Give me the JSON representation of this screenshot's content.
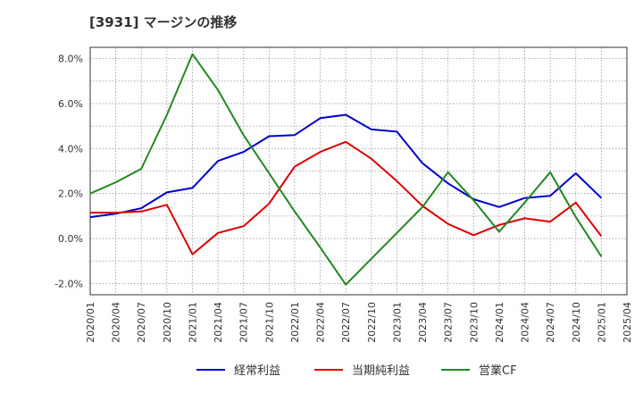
{
  "chart_data": {
    "type": "line",
    "title": "[3931]  マージンの推移",
    "x": [
      "2020/01",
      "2020/04",
      "2020/07",
      "2020/10",
      "2021/01",
      "2021/04",
      "2021/07",
      "2021/10",
      "2022/01",
      "2022/04",
      "2022/07",
      "2022/10",
      "2023/01",
      "2023/04",
      "2023/07",
      "2023/10",
      "2024/01",
      "2024/04",
      "2024/07",
      "2024/10",
      "2025/01",
      "2025/04"
    ],
    "ylim": [
      -2.5,
      8.5
    ],
    "yticks": [
      -2.0,
      0.0,
      2.0,
      4.0,
      6.0,
      8.0
    ],
    "ytick_labels": [
      "-2.0%",
      "0.0%",
      "2.0%",
      "4.0%",
      "6.0%",
      "8.0%"
    ],
    "grid": true,
    "legend_position": "bottom",
    "series": [
      {
        "name": "経常利益",
        "color": "#0000cc",
        "values": [
          0.95,
          1.1,
          1.35,
          2.05,
          2.25,
          3.45,
          3.85,
          4.55,
          4.6,
          5.35,
          5.5,
          4.85,
          4.75,
          3.35,
          2.45,
          1.75,
          1.4,
          1.8,
          1.9,
          2.9,
          1.8,
          null
        ]
      },
      {
        "name": "当期純利益",
        "color": "#dd0000",
        "values": [
          1.15,
          1.15,
          1.2,
          1.5,
          -0.7,
          0.25,
          0.55,
          1.55,
          3.2,
          3.85,
          4.3,
          3.55,
          2.55,
          1.45,
          0.65,
          0.15,
          0.6,
          0.9,
          0.75,
          1.6,
          0.1,
          null
        ]
      },
      {
        "name": "営業CF",
        "color": "#228822",
        "values": [
          2.0,
          2.5,
          3.1,
          5.5,
          8.2,
          6.6,
          4.6,
          2.9,
          1.2,
          -0.4,
          -2.05,
          -0.9,
          0.25,
          1.4,
          2.95,
          1.7,
          0.3,
          1.6,
          2.95,
          0.95,
          -0.8,
          null
        ]
      }
    ]
  }
}
